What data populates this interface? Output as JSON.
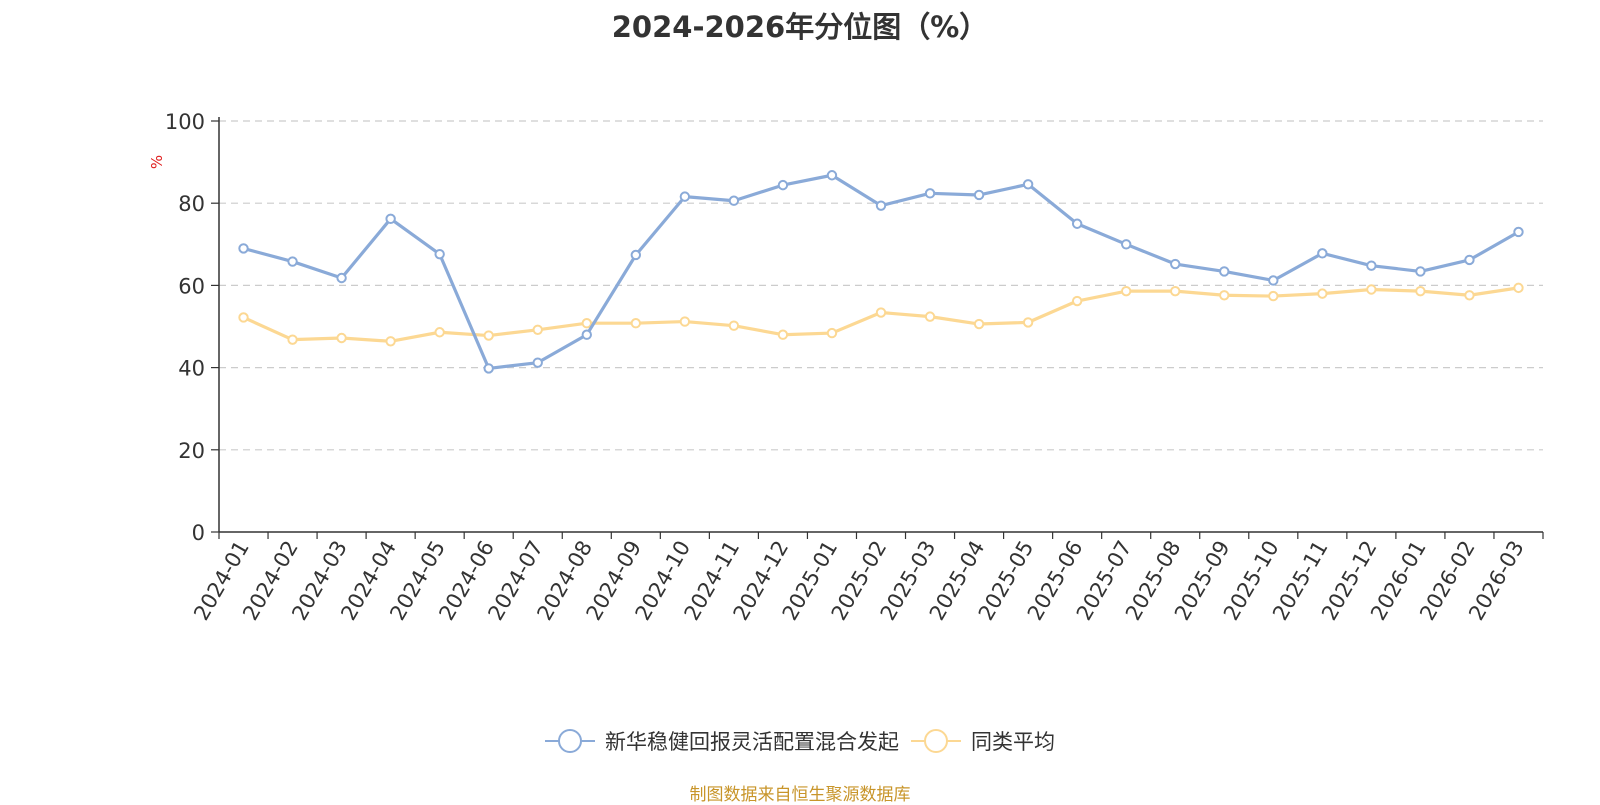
{
  "title": "2024-2026年分位图（%）",
  "source": "制图数据来自恒生聚源数据库",
  "colors": {
    "series1": "#8aaad8",
    "series2": "#fcd893",
    "ylabel": "#e02020",
    "grid": "#cccccc",
    "axis": "#333333"
  },
  "chart_data": {
    "type": "line",
    "title": "2024-2026年分位图（%）",
    "xlabel": "",
    "ylabel": "%",
    "ylim": [
      0,
      100
    ],
    "yticks": [
      0,
      20,
      40,
      60,
      80,
      100
    ],
    "grid": true,
    "legend_position": "bottom",
    "categories": [
      "2024-01",
      "2024-02",
      "2024-03",
      "2024-04",
      "2024-05",
      "2024-06",
      "2024-07",
      "2024-08",
      "2024-09",
      "2024-10",
      "2024-11",
      "2024-12",
      "2025-01",
      "2025-02",
      "2025-03",
      "2025-04",
      "2025-05",
      "2025-06",
      "2025-07",
      "2025-08",
      "2025-09",
      "2025-10",
      "2025-11",
      "2025-12",
      "2026-01",
      "2026-02",
      "2026-03"
    ],
    "series": [
      {
        "name": "新华稳健回报灵活配置混合发起",
        "color": "#8aaad8",
        "values": [
          69.0,
          65.8,
          61.8,
          76.2,
          67.6,
          39.8,
          41.2,
          48.0,
          67.4,
          81.6,
          80.6,
          84.4,
          86.8,
          79.4,
          82.4,
          82.0,
          84.6,
          75.0,
          70.0,
          65.2,
          63.4,
          61.2,
          67.8,
          64.8,
          63.4,
          66.2,
          73.0
        ]
      },
      {
        "name": "同类平均",
        "color": "#fcd893",
        "values": [
          52.2,
          46.8,
          47.2,
          46.4,
          48.6,
          47.8,
          49.2,
          50.8,
          50.8,
          51.2,
          50.2,
          48.0,
          48.4,
          53.4,
          52.4,
          50.6,
          51.0,
          56.2,
          58.6,
          58.6,
          57.6,
          57.4,
          58.0,
          59.0,
          58.6,
          57.6,
          59.4
        ]
      }
    ]
  }
}
